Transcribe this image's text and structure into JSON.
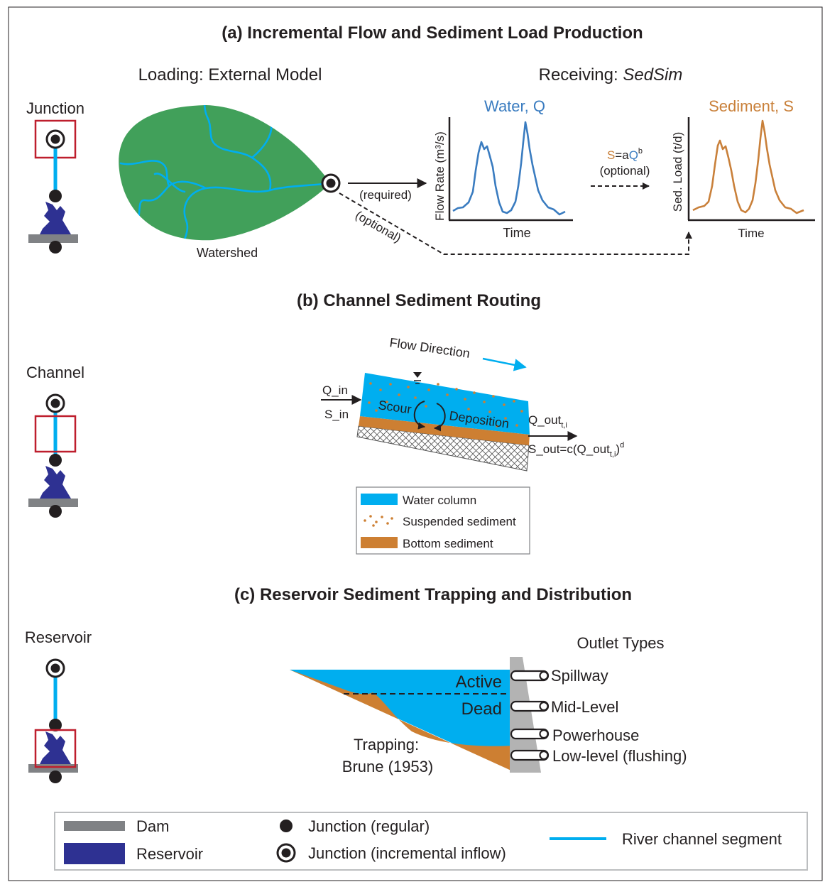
{
  "colors": {
    "water": "#00aeef",
    "watershed": "#41a05a",
    "flow_line": "#3a7cc0",
    "sediment_line": "#c9803a",
    "bottom_sediment": "#cd7f32",
    "reservoir": "#2e3192",
    "dam": "#808285",
    "junction_box": "#be1e2d",
    "text": "#231f20"
  },
  "section_a": {
    "title": "(a) Incremental Flow and Sediment Load Production",
    "side_label": "Junction",
    "loading_label": "Loading: External Model",
    "receiving_prefix": "Receiving: ",
    "receiving_model": "SedSim",
    "watershed_label": "Watershed",
    "required_label": "(required)",
    "optional_label": "(optional)",
    "water_chart": {
      "title": "Water, Q",
      "ylabel": "Flow Rate (m³/s)",
      "xlabel": "Time"
    },
    "sediment_chart": {
      "title": "Sediment, S",
      "ylabel": "Sed. Load (t/d)",
      "xlabel": "Time"
    },
    "rating_S": "S",
    "rating_eq": "=a",
    "rating_Q": "Q",
    "rating_exp": "b",
    "rating_note": "(optional)"
  },
  "section_b": {
    "title": "(b) Channel Sediment Routing",
    "side_label": "Channel",
    "flow_direction": "Flow Direction",
    "q_in": "Q_in",
    "s_in": "S_in",
    "scour": "Scour",
    "deposition": "Deposition",
    "q_out": "Q_out",
    "q_out_sub": "t,i",
    "s_out_prefix": "S_out=c(Q_out",
    "s_out_sub": "t,i",
    "s_out_suffix": ")",
    "s_out_exp": "d",
    "legend": [
      "Water column",
      "Suspended sediment",
      "Bottom sediment"
    ]
  },
  "section_c": {
    "title": "(c) Reservoir Sediment Trapping and Distribution",
    "side_label": "Reservoir",
    "active": "Active",
    "dead": "Dead",
    "trapping_1": "Trapping:",
    "trapping_2": "Brune (1953)",
    "outlet_types": "Outlet Types",
    "outlets": [
      "Spillway",
      "Mid-Level",
      "Powerhouse",
      "Low-level (flushing)"
    ]
  },
  "legend": {
    "dam": "Dam",
    "reservoir": "Reservoir",
    "junction_regular": "Junction (regular)",
    "junction_incremental": "Junction (incremental inflow)",
    "river_segment": "River channel segment"
  }
}
